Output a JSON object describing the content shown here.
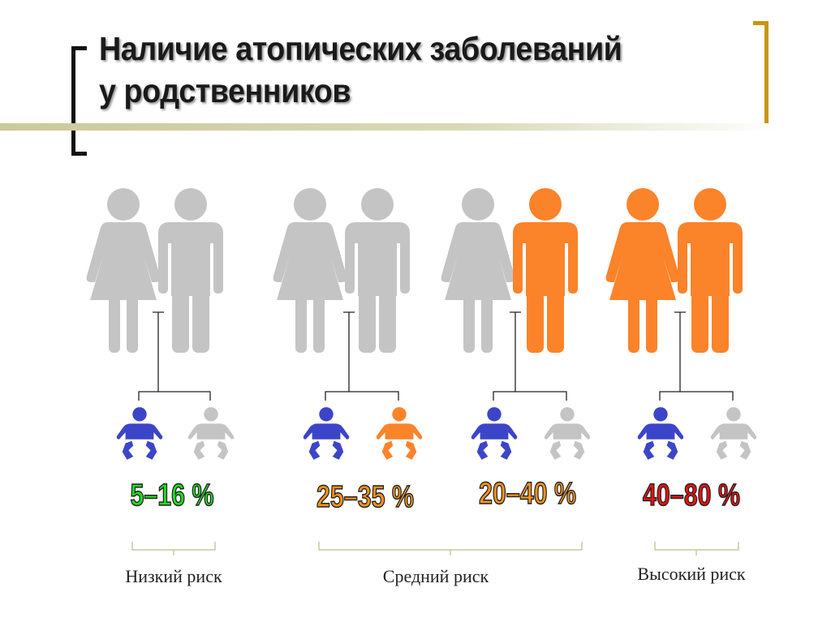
{
  "title": {
    "line1": "Наличие атопических заболеваний",
    "line2": "у родственников"
  },
  "colors": {
    "gray": "#c4c4c4",
    "orange": "#fb832a",
    "blue": "#3c45c8",
    "title_rule": "#c9c99a",
    "bracket_left": "#111111",
    "bracket_right": "#c8960c"
  },
  "groups": [
    {
      "mother": "#c4c4c4",
      "father": "#c4c4c4",
      "child1": "#3c45c8",
      "child2": "#c4c4c4",
      "percent": "5–16 %",
      "percent_color": "#22dd22"
    },
    {
      "mother": "#c4c4c4",
      "father": "#c4c4c4",
      "child1": "#3c45c8",
      "child2": "#fb832a",
      "percent": "25–35 %",
      "percent_color": "#f7931e"
    },
    {
      "mother": "#c4c4c4",
      "father": "#fb832a",
      "child1": "#3c45c8",
      "child2": "#c4c4c4",
      "percent": "20–40 %",
      "percent_color": "#f7931e"
    },
    {
      "mother": "#fb832a",
      "father": "#fb832a",
      "child1": "#3c45c8",
      "child2": "#c4c4c4",
      "percent": "40–80 %",
      "percent_color": "#ee1111"
    }
  ],
  "risk_levels": [
    {
      "label": "Низкий риск"
    },
    {
      "label": "Средний риск"
    },
    {
      "label": "Высокий риск"
    }
  ]
}
